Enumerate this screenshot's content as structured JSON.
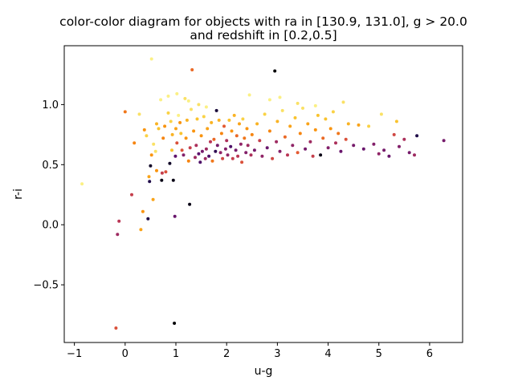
{
  "chart_data": {
    "type": "scatter",
    "title_lines": [
      "color-color diagram for objects with ra in [130.9, 131.0], g > 20.0",
      "and redshift in [0.2,0.5]"
    ],
    "xlabel": "u-g",
    "ylabel": "r-i",
    "xlim": [
      -1.2,
      6.65
    ],
    "ylim": [
      -0.98,
      1.49
    ],
    "xticks": [
      -1,
      0,
      1,
      2,
      3,
      4,
      5,
      6
    ],
    "xtick_labels": [
      "−1",
      "0",
      "1",
      "2",
      "3",
      "4",
      "5",
      "6"
    ],
    "yticks": [
      -0.5,
      0.0,
      0.5,
      1.0
    ],
    "ytick_labels": [
      "−0.5",
      "0.0",
      "0.5",
      "1.0"
    ],
    "grid": false,
    "colormap": "inferno",
    "color_range": [
      0.2,
      0.5
    ],
    "points": [
      [
        -0.85,
        0.34,
        0.49
      ],
      [
        -0.15,
        -0.08,
        0.33
      ],
      [
        -0.12,
        0.03,
        0.35
      ],
      [
        -0.18,
        -0.86,
        0.38
      ],
      [
        0.0,
        0.94,
        0.41
      ],
      [
        0.13,
        0.25,
        0.36
      ],
      [
        0.18,
        0.68,
        0.42
      ],
      [
        0.28,
        0.92,
        0.48
      ],
      [
        0.31,
        -0.04,
        0.44
      ],
      [
        0.35,
        0.11,
        0.43
      ],
      [
        0.38,
        0.79,
        0.43
      ],
      [
        0.42,
        0.74,
        0.47
      ],
      [
        0.45,
        0.05,
        0.24
      ],
      [
        0.47,
        0.4,
        0.44
      ],
      [
        0.48,
        0.36,
        0.24
      ],
      [
        0.5,
        0.49,
        0.22
      ],
      [
        0.52,
        0.58,
        0.43
      ],
      [
        0.52,
        1.38,
        0.49
      ],
      [
        0.55,
        0.21,
        0.44
      ],
      [
        0.56,
        0.67,
        0.48
      ],
      [
        0.6,
        0.61,
        0.48
      ],
      [
        0.62,
        0.84,
        0.45
      ],
      [
        0.62,
        0.45,
        0.43
      ],
      [
        0.66,
        0.8,
        0.46
      ],
      [
        0.72,
        0.37,
        0.21
      ],
      [
        0.73,
        0.43,
        0.36
      ],
      [
        0.75,
        0.72,
        0.42
      ],
      [
        0.78,
        0.82,
        0.43
      ],
      [
        0.8,
        0.44,
        0.38
      ],
      [
        0.85,
        0.93,
        0.47
      ],
      [
        0.88,
        0.51,
        0.22
      ],
      [
        0.9,
        0.86,
        0.47
      ],
      [
        0.92,
        0.62,
        0.46
      ],
      [
        0.93,
        0.75,
        0.45
      ],
      [
        0.95,
        0.37,
        0.21
      ],
      [
        0.97,
        -0.82,
        0.2
      ],
      [
        0.98,
        0.07,
        0.29
      ],
      [
        0.99,
        0.57,
        0.28
      ],
      [
        1.0,
        0.8,
        0.44
      ],
      [
        1.02,
        0.68,
        0.38
      ],
      [
        1.05,
        0.91,
        0.49
      ],
      [
        1.08,
        0.85,
        0.43
      ],
      [
        1.1,
        0.76,
        0.46
      ],
      [
        1.12,
        0.62,
        0.38
      ],
      [
        1.15,
        0.58,
        0.31
      ],
      [
        1.18,
        1.05,
        0.48
      ],
      [
        1.2,
        0.72,
        0.43
      ],
      [
        1.22,
        0.87,
        0.45
      ],
      [
        1.25,
        0.53,
        0.42
      ],
      [
        1.27,
        0.17,
        0.21
      ],
      [
        1.28,
        0.64,
        0.36
      ],
      [
        1.3,
        0.96,
        0.48
      ],
      [
        1.32,
        1.29,
        0.4
      ],
      [
        1.35,
        0.78,
        0.43
      ],
      [
        1.38,
        0.56,
        0.33
      ],
      [
        1.4,
        0.66,
        0.34
      ],
      [
        1.42,
        0.88,
        0.46
      ],
      [
        1.45,
        0.59,
        0.28
      ],
      [
        1.48,
        0.52,
        0.27
      ],
      [
        1.5,
        0.74,
        0.43
      ],
      [
        1.52,
        0.61,
        0.3
      ],
      [
        1.55,
        0.9,
        0.47
      ],
      [
        1.58,
        0.55,
        0.33
      ],
      [
        1.6,
        0.63,
        0.33
      ],
      [
        1.62,
        0.8,
        0.44
      ],
      [
        1.65,
        0.57,
        0.27
      ],
      [
        1.68,
        0.69,
        0.35
      ],
      [
        1.7,
        0.85,
        0.45
      ],
      [
        1.72,
        0.53,
        0.41
      ],
      [
        1.75,
        0.71,
        0.4
      ],
      [
        1.78,
        0.61,
        0.25
      ],
      [
        1.8,
        0.95,
        0.23
      ],
      [
        1.82,
        0.66,
        0.3
      ],
      [
        1.85,
        0.87,
        0.45
      ],
      [
        1.88,
        0.6,
        0.32
      ],
      [
        1.9,
        0.76,
        0.42
      ],
      [
        1.92,
        0.55,
        0.37
      ],
      [
        1.95,
        0.82,
        0.39
      ],
      [
        1.98,
        0.63,
        0.31
      ],
      [
        2.0,
        0.7,
        0.34
      ],
      [
        2.02,
        0.58,
        0.32
      ],
      [
        2.05,
        0.87,
        0.46
      ],
      [
        2.08,
        0.65,
        0.27
      ],
      [
        2.1,
        0.78,
        0.43
      ],
      [
        2.12,
        0.55,
        0.36
      ],
      [
        2.15,
        0.91,
        0.45
      ],
      [
        2.18,
        0.62,
        0.3
      ],
      [
        2.2,
        0.74,
        0.4
      ],
      [
        2.22,
        0.57,
        0.35
      ],
      [
        2.25,
        0.84,
        0.44
      ],
      [
        2.28,
        0.67,
        0.32
      ],
      [
        2.3,
        0.52,
        0.38
      ],
      [
        2.32,
        0.88,
        0.47
      ],
      [
        2.35,
        0.72,
        0.41
      ],
      [
        2.38,
        0.6,
        0.31
      ],
      [
        2.4,
        0.8,
        0.43
      ],
      [
        2.42,
        0.66,
        0.33
      ],
      [
        2.45,
        1.08,
        0.49
      ],
      [
        2.48,
        0.58,
        0.34
      ],
      [
        2.5,
        0.75,
        0.42
      ],
      [
        2.55,
        0.62,
        0.3
      ],
      [
        2.6,
        0.84,
        0.45
      ],
      [
        2.65,
        0.7,
        0.36
      ],
      [
        2.7,
        0.57,
        0.32
      ],
      [
        2.75,
        0.92,
        0.47
      ],
      [
        2.8,
        0.64,
        0.29
      ],
      [
        2.85,
        0.78,
        0.42
      ],
      [
        2.9,
        0.55,
        0.37
      ],
      [
        2.95,
        1.28,
        0.2
      ],
      [
        2.98,
        0.69,
        0.33
      ],
      [
        3.0,
        0.86,
        0.45
      ],
      [
        3.05,
        0.61,
        0.31
      ],
      [
        3.1,
        0.95,
        0.48
      ],
      [
        3.15,
        0.73,
        0.4
      ],
      [
        3.2,
        0.58,
        0.35
      ],
      [
        3.25,
        0.82,
        0.44
      ],
      [
        3.3,
        0.66,
        0.32
      ],
      [
        3.35,
        0.89,
        0.46
      ],
      [
        3.4,
        0.6,
        0.39
      ],
      [
        3.45,
        0.76,
        0.42
      ],
      [
        3.5,
        0.97,
        0.48
      ],
      [
        3.55,
        0.63,
        0.3
      ],
      [
        3.6,
        0.84,
        0.44
      ],
      [
        3.65,
        0.69,
        0.33
      ],
      [
        3.7,
        0.57,
        0.36
      ],
      [
        3.75,
        0.79,
        0.43
      ],
      [
        3.8,
        0.91,
        0.46
      ],
      [
        3.85,
        0.58,
        0.21
      ],
      [
        3.9,
        0.72,
        0.4
      ],
      [
        3.95,
        0.88,
        0.46
      ],
      [
        4.0,
        0.64,
        0.31
      ],
      [
        4.05,
        0.8,
        0.43
      ],
      [
        4.1,
        0.94,
        0.47
      ],
      [
        4.15,
        0.68,
        0.34
      ],
      [
        4.2,
        0.76,
        0.41
      ],
      [
        4.25,
        0.61,
        0.29
      ],
      [
        4.3,
        1.02,
        0.48
      ],
      [
        4.35,
        0.71,
        0.38
      ],
      [
        4.4,
        0.84,
        0.45
      ],
      [
        4.5,
        0.66,
        0.3
      ],
      [
        4.6,
        0.83,
        0.44
      ],
      [
        4.7,
        0.63,
        0.29
      ],
      [
        4.8,
        0.82,
        0.47
      ],
      [
        4.9,
        0.67,
        0.31
      ],
      [
        5.0,
        0.59,
        0.32
      ],
      [
        5.05,
        0.92,
        0.48
      ],
      [
        5.1,
        0.62,
        0.3
      ],
      [
        5.2,
        0.57,
        0.29
      ],
      [
        5.3,
        0.75,
        0.37
      ],
      [
        5.35,
        0.86,
        0.46
      ],
      [
        5.4,
        0.65,
        0.31
      ],
      [
        5.5,
        0.71,
        0.34
      ],
      [
        5.6,
        0.6,
        0.3
      ],
      [
        5.7,
        0.58,
        0.33
      ],
      [
        5.75,
        0.74,
        0.24
      ],
      [
        6.28,
        0.7,
        0.3
      ],
      [
        0.7,
        1.04,
        0.49
      ],
      [
        0.85,
        1.07,
        0.49
      ],
      [
        1.02,
        1.09,
        0.49
      ],
      [
        1.25,
        1.03,
        0.49
      ],
      [
        1.45,
        1.0,
        0.48
      ],
      [
        1.6,
        0.98,
        0.49
      ],
      [
        2.85,
        1.04,
        0.49
      ],
      [
        3.05,
        1.06,
        0.49
      ],
      [
        3.4,
        1.01,
        0.48
      ],
      [
        3.75,
        0.99,
        0.49
      ]
    ]
  }
}
